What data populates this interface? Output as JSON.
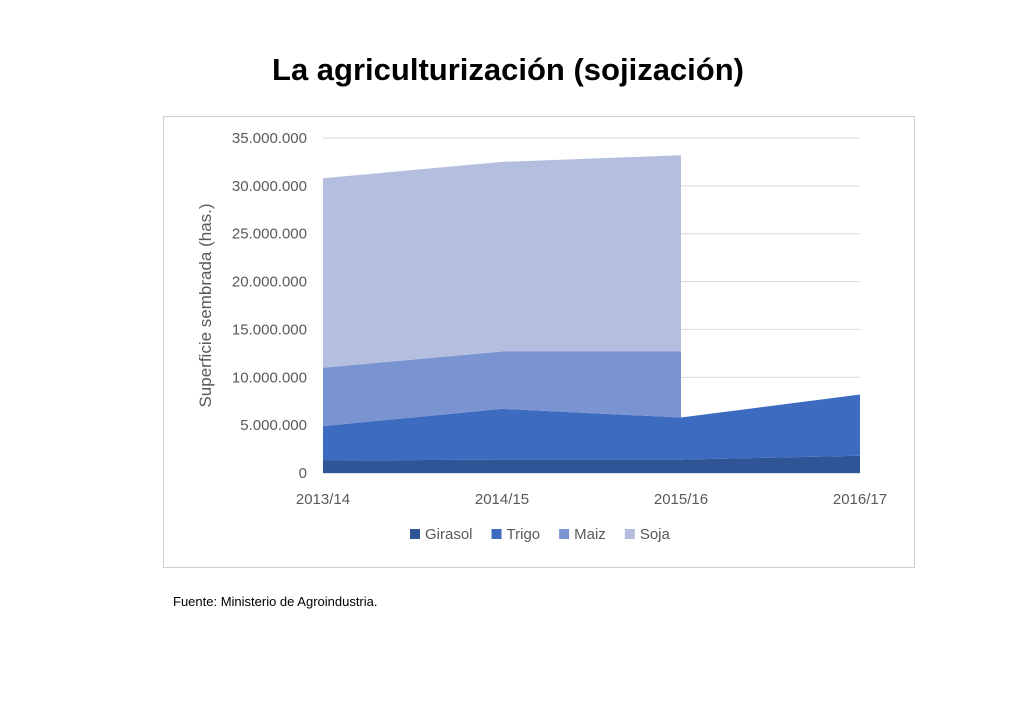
{
  "title": "La agriculturización (sojización)",
  "source": "Fuente: Ministerio de Agroindustria.",
  "chart_data": {
    "type": "area",
    "stacked": true,
    "categories": [
      "2013/14",
      "2014/15",
      "2015/16",
      "2016/17"
    ],
    "ylabel": "Superficie sembrada (has.)",
    "xlabel": "",
    "ylim": [
      0,
      35000000
    ],
    "yticks": [
      0,
      5000000,
      10000000,
      15000000,
      20000000,
      25000000,
      30000000,
      35000000
    ],
    "ytick_labels": [
      "0",
      "5.000.000",
      "10.000.000",
      "15.000.000",
      "20.000.000",
      "25.000.000",
      "30.000.000",
      "35.000.000"
    ],
    "grid": true,
    "legend_position": "bottom",
    "series": [
      {
        "name": "Girasol",
        "color": "#2f5597",
        "values": [
          1300000,
          1400000,
          1400000,
          1800000
        ]
      },
      {
        "name": "Trigo",
        "color": "#3d6bbf",
        "values": [
          3600000,
          5300000,
          4400000,
          6400000
        ]
      },
      {
        "name": "Maiz",
        "color": "#7a93d1",
        "values": [
          6100000,
          6000000,
          6900000,
          null
        ]
      },
      {
        "name": "Soja",
        "color": "#b4bfe0",
        "values": [
          19800000,
          19800000,
          20500000,
          null
        ]
      }
    ]
  }
}
